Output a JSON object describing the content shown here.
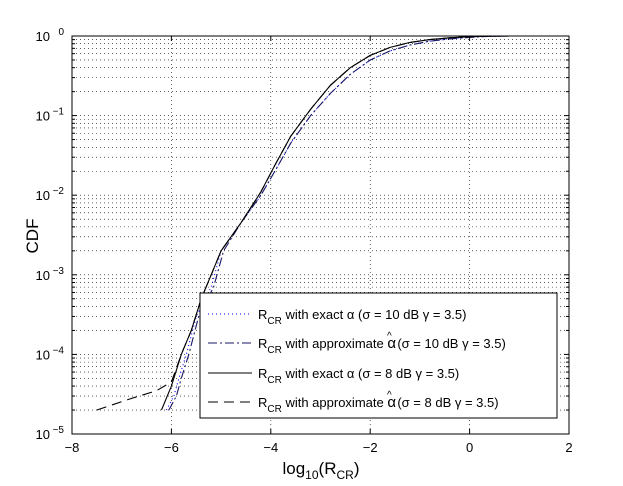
{
  "chart_data": {
    "type": "line",
    "xlabel": {
      "base": "log",
      "sub1": "10",
      "open": "(R",
      "sub2": "CR",
      "close": ")"
    },
    "ylabel": "CDF",
    "xlim": [
      -8,
      2
    ],
    "ylim": [
      1e-05,
      1
    ],
    "y_scale": "log",
    "grid": true,
    "legend_placement": "bottom-right",
    "x_ticks": [
      -8,
      -6,
      -4,
      -2,
      0,
      2
    ],
    "x_tick_labels": [
      "−8",
      "−6",
      "−4",
      "−2",
      "0",
      "2"
    ],
    "y_ticks": [
      {
        "value": 1e-05,
        "base": "10",
        "exp": "−5"
      },
      {
        "value": 0.0001,
        "base": "10",
        "exp": "−4"
      },
      {
        "value": 0.001,
        "base": "10",
        "exp": "−3"
      },
      {
        "value": 0.01,
        "base": "10",
        "exp": "−2"
      },
      {
        "value": 0.1,
        "base": "10",
        "exp": "−1"
      },
      {
        "value": 1,
        "base": "10",
        "exp": "0"
      }
    ],
    "series": [
      {
        "legend": {
          "r": "R",
          "sub": "CR",
          "rest": " with exact α (σ = 10 dB γ = 3.5)"
        },
        "color": "#0000ff",
        "dash": "1,3",
        "x": [
          -6.1,
          -5.95,
          -5.85,
          -5.7,
          -5.5,
          -5.2,
          -5.0,
          -4.6,
          -4.2,
          -3.9,
          -3.6,
          -3.2,
          -2.8,
          -2.4,
          -2.0,
          -1.6,
          -1.2,
          -0.8,
          -0.4,
          0.0,
          0.4,
          0.8
        ],
        "y": [
          2e-05,
          3e-05,
          5e-05,
          0.0001,
          0.0003,
          0.0007,
          0.002,
          0.0045,
          0.01,
          0.021,
          0.045,
          0.1,
          0.19,
          0.33,
          0.5,
          0.65,
          0.77,
          0.86,
          0.92,
          0.96,
          0.99,
          1.0
        ]
      },
      {
        "legend": {
          "r": "R",
          "sub": "CR",
          "rest": " with approximate ",
          "alpha": "α",
          "hat": "^",
          "rest2": " (σ = 10 dB γ = 3.5)"
        },
        "color": "#1a1a66",
        "dash": "9,3,2,3",
        "x": [
          -6.05,
          -5.9,
          -5.8,
          -5.65,
          -5.45,
          -5.15,
          -4.95,
          -4.6,
          -4.2,
          -3.9,
          -3.6,
          -3.2,
          -2.8,
          -2.4,
          -2.0,
          -1.6,
          -1.2,
          -0.8,
          -0.4,
          0.0,
          0.4,
          0.8
        ],
        "y": [
          2e-05,
          3e-05,
          5e-05,
          0.0001,
          0.0003,
          0.0007,
          0.002,
          0.0045,
          0.01,
          0.021,
          0.045,
          0.1,
          0.19,
          0.33,
          0.5,
          0.65,
          0.77,
          0.86,
          0.92,
          0.96,
          0.99,
          1.0
        ]
      },
      {
        "legend": {
          "r": "R",
          "sub": "CR",
          "rest": " with exact α (σ = 8 dB γ = 3.5)"
        },
        "color": "#000000",
        "dash": "",
        "x": [
          -6.2,
          -6.0,
          -5.8,
          -5.6,
          -5.4,
          -5.2,
          -5.0,
          -4.6,
          -4.2,
          -3.9,
          -3.6,
          -3.2,
          -2.8,
          -2.4,
          -2.0,
          -1.6,
          -1.2,
          -0.8,
          -0.4,
          0.0,
          0.4,
          0.8
        ],
        "y": [
          2e-05,
          4e-05,
          0.0001,
          0.0002,
          0.0005,
          0.001,
          0.002,
          0.0045,
          0.011,
          0.025,
          0.055,
          0.12,
          0.24,
          0.4,
          0.57,
          0.72,
          0.83,
          0.9,
          0.95,
          0.98,
          0.995,
          1.0
        ]
      },
      {
        "legend": {
          "r": "R",
          "sub": "CR",
          "rest": " with approximate ",
          "alpha": "α",
          "hat": "^",
          "rest2": " (σ = 8 dB γ = 3.5)"
        },
        "color": "#000000",
        "dash": "10,6",
        "x": [
          -7.5,
          -6.8,
          -6.3,
          -6.0,
          -5.8,
          -5.6,
          -5.4,
          -5.2,
          -5.0,
          -4.6,
          -4.2,
          -3.9,
          -3.6,
          -3.2,
          -2.8,
          -2.4,
          -2.0,
          -1.6,
          -1.2,
          -0.8,
          -0.4,
          0.0,
          0.4,
          0.8
        ],
        "y": [
          2e-05,
          2.8e-05,
          3.5e-05,
          4.5e-05,
          0.0001,
          0.0002,
          0.0005,
          0.001,
          0.002,
          0.0045,
          0.011,
          0.025,
          0.055,
          0.12,
          0.24,
          0.4,
          0.57,
          0.72,
          0.83,
          0.9,
          0.95,
          0.98,
          0.995,
          1.0
        ]
      }
    ]
  }
}
